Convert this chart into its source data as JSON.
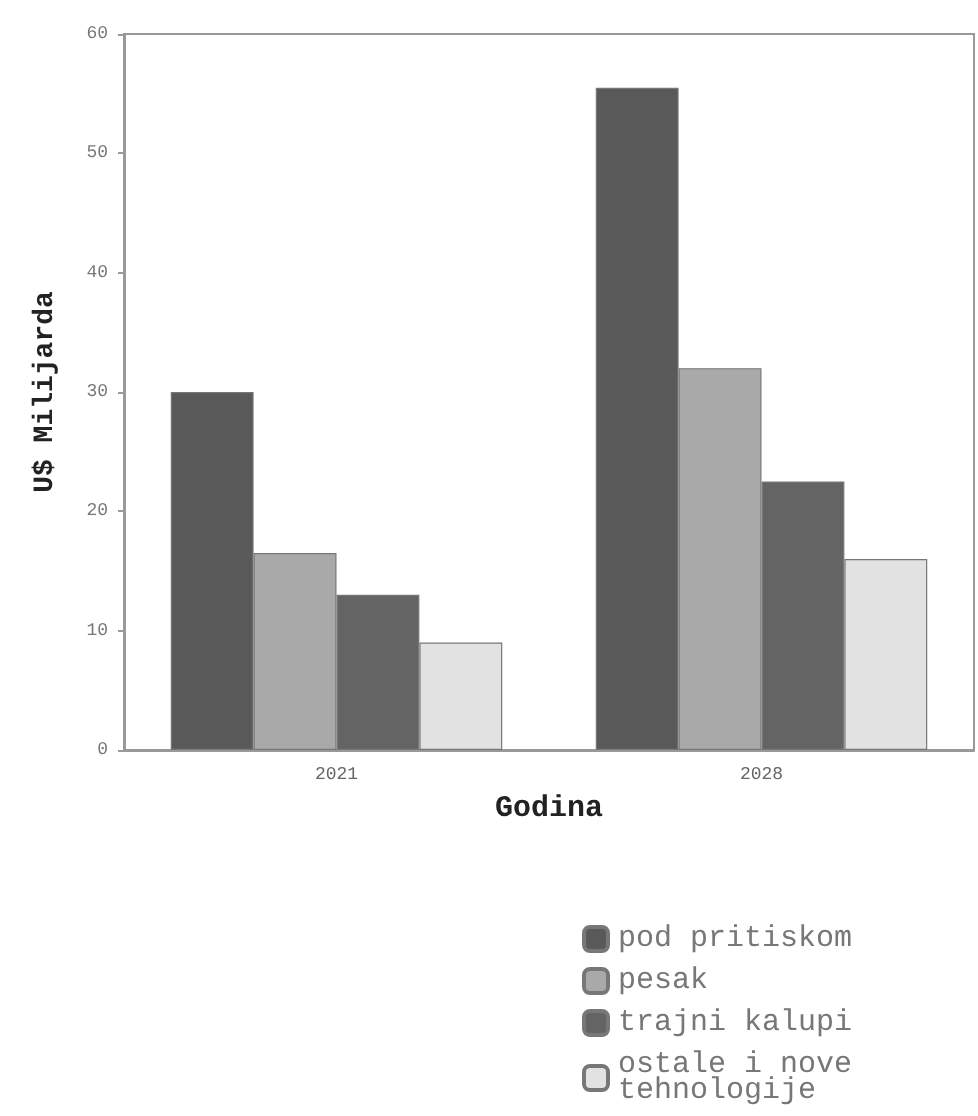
{
  "chart_data": {
    "type": "bar",
    "xlabel": "Godina",
    "ylabel": "U$ Milijarda",
    "categories": [
      "2021",
      "2028"
    ],
    "series": [
      {
        "name": "pod pritiskom",
        "color": "#595959",
        "values": [
          30,
          55.5
        ]
      },
      {
        "name": "pesak",
        "color": "#a9a9a9",
        "values": [
          16.5,
          32
        ]
      },
      {
        "name": "trajni kalupi",
        "color": "#646464",
        "values": [
          13,
          22.5
        ]
      },
      {
        "name": "ostale i nove tehnologije",
        "color": "#e2e2e2",
        "values": [
          9,
          16
        ]
      }
    ],
    "ylim": [
      0,
      60
    ],
    "yticks": [
      0,
      10,
      20,
      30,
      40,
      50,
      60
    ],
    "grid": false,
    "legend": "bottom right"
  }
}
